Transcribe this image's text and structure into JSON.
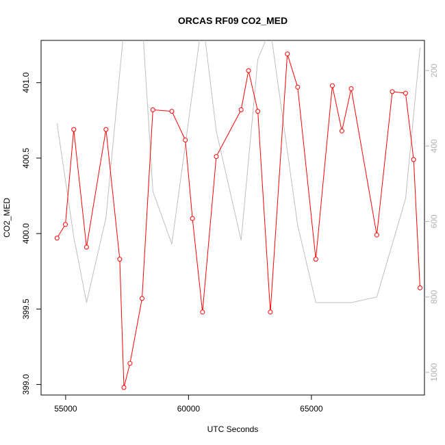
{
  "chart_data": {
    "type": "line",
    "title": "ORCAS RF09 CO2_MED",
    "xlabel": "UTC Seconds",
    "ylabel": "CO2_MED",
    "xlim": [
      54000,
      69600
    ],
    "ylim": [
      398.93,
      401.28
    ],
    "x_ticks": [
      55000,
      60000,
      65000
    ],
    "x_tick_labels": [
      "55000",
      "60000",
      "65000"
    ],
    "y_ticks": [
      399.0,
      399.5,
      400.0,
      400.5,
      401.0
    ],
    "y_tick_labels": [
      "399.0",
      "399.5",
      "400.0",
      "400.5",
      "401.0"
    ],
    "y2_ticks": [
      200,
      400,
      600,
      800,
      1000
    ],
    "y2_tick_labels": [
      "200",
      "400",
      "600",
      "800",
      "1000"
    ],
    "y2_lim": [
      1060,
      120
    ],
    "series": [
      {
        "color": "#ff0000",
        "axis": "left",
        "markers": "open-circle",
        "x": [
          54650,
          54990,
          55330,
          55850,
          56640,
          57200,
          57370,
          57620,
          58110,
          58550,
          59320,
          59870,
          60160,
          60570,
          61130,
          62140,
          62440,
          62820,
          63330,
          64020,
          64440,
          65180,
          65850,
          66240,
          66620,
          67660,
          68290,
          68830,
          69160,
          69420
        ],
        "values": [
          399.97,
          400.06,
          400.69,
          399.91,
          400.69,
          399.83,
          398.98,
          399.14,
          399.57,
          400.82,
          400.81,
          400.62,
          400.1,
          399.48,
          400.51,
          400.82,
          401.08,
          400.81,
          399.48,
          401.19,
          400.97,
          399.83,
          400.98,
          400.68,
          400.96,
          399.99,
          400.94,
          400.93,
          400.49,
          399.64
        ]
      },
      {
        "color": "#bebebe",
        "axis": "right",
        "markers": "none",
        "x": [
          54650,
          55330,
          55850,
          56640,
          57370,
          58110,
          58550,
          59320,
          60570,
          61130,
          62140,
          62820,
          63330,
          64440,
          65180,
          65850,
          66620,
          67660,
          68830,
          69420
        ],
        "values": [
          340,
          640,
          815,
          590,
          90,
          60,
          520,
          660,
          60,
          360,
          650,
          170,
          90,
          610,
          815,
          815,
          815,
          800,
          540,
          140
        ]
      }
    ]
  }
}
